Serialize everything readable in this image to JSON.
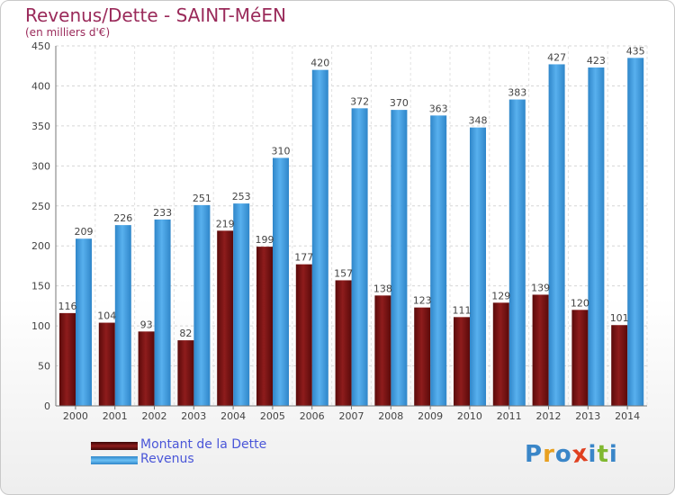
{
  "title": "Revenus/Dette - SAINT-MéEN",
  "subtitle": "(en milliers d'€)",
  "colors": {
    "debt": "#7a1212",
    "revenue": "#3d97d9",
    "title": "#9a2a5a",
    "legend_text": "#4a56d8"
  },
  "logo": {
    "text": "Proxiti",
    "letters": [
      "P",
      "r",
      "o",
      "x",
      "i",
      "t",
      "i"
    ],
    "letter_colors": [
      "#3a86c8",
      "#e8a020",
      "#3a86c8",
      "#e04020",
      "#3a86c8",
      "#80b830",
      "#3a86c8"
    ]
  },
  "chart_data": {
    "type": "bar",
    "title": "Revenus/Dette - SAINT-MéEN",
    "subtitle": "(en milliers d'€)",
    "categories": [
      "2000",
      "2001",
      "2002",
      "2003",
      "2004",
      "2005",
      "2006",
      "2007",
      "2008",
      "2009",
      "2010",
      "2011",
      "2012",
      "2013",
      "2014"
    ],
    "series": [
      {
        "name": "Montant de la Dette",
        "color": "#7a1212",
        "values": [
          116,
          104,
          93,
          82,
          219,
          199,
          177,
          157,
          138,
          123,
          111,
          129,
          139,
          120,
          101
        ]
      },
      {
        "name": "Revenus",
        "color": "#3d97d9",
        "values": [
          209,
          226,
          233,
          251,
          253,
          310,
          420,
          372,
          370,
          363,
          348,
          383,
          427,
          423,
          435
        ]
      }
    ],
    "ylim": [
      0,
      450
    ],
    "yticks": [
      0,
      50,
      100,
      150,
      200,
      250,
      300,
      350,
      400,
      450
    ],
    "grid": true,
    "legend_position": "bottom-left"
  }
}
